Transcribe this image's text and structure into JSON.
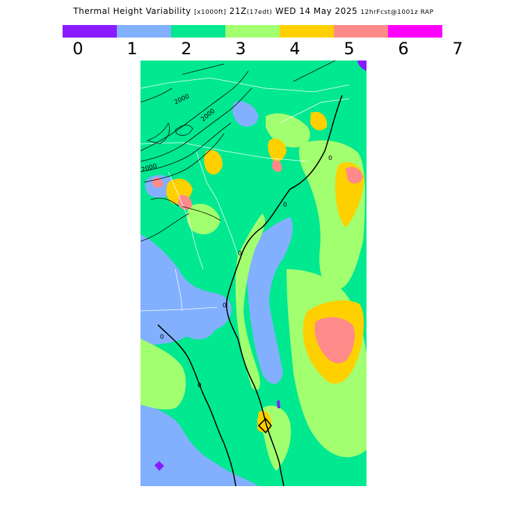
{
  "title": {
    "main": "Thermal Height Variability",
    "units": "[x1000ft]",
    "valid": "21Z",
    "local": "(17edt)",
    "date": "WED 14 May 2025",
    "fcst": "12hrFcst@1001z RAP"
  },
  "legend": {
    "colors": [
      "#8a1aff",
      "#82b0ff",
      "#00e890",
      "#a2ff70",
      "#ffd000",
      "#ff8a8a",
      "#ff00ff"
    ],
    "ticks": [
      "0",
      "1",
      "2",
      "3",
      "4",
      "5",
      "6",
      "7"
    ]
  },
  "contour_labels": [
    "2000",
    "2000",
    "2000",
    "0",
    "0",
    "0",
    "0",
    "0",
    "0"
  ]
}
